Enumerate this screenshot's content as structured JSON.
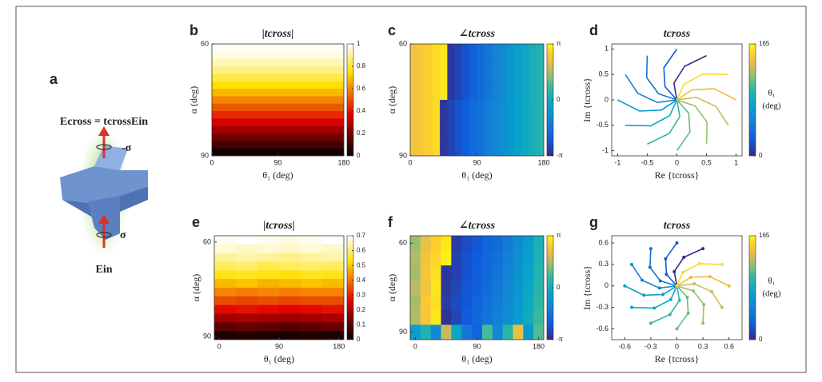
{
  "panel_a": {
    "label": "a",
    "equation": "Ecross = tcrossEin",
    "top_spin": "-σ",
    "bottom_spin": "σ",
    "input": "Ein"
  },
  "chart_data": [
    {
      "type": "heatmap",
      "panel": "b",
      "title": "|tcross|",
      "xlabel": "θ₁ (deg)",
      "ylabel": "α (deg)",
      "xlim": [
        0,
        180
      ],
      "ylim": [
        60,
        90
      ],
      "y_inverted": true,
      "xticks": [
        0,
        90,
        180
      ],
      "yticks": [
        60,
        90
      ],
      "xbins": [
        0,
        180
      ],
      "ybins": [
        60,
        62,
        64,
        66,
        68,
        70,
        72,
        74,
        76,
        78,
        80,
        82,
        84,
        86,
        88,
        90
      ],
      "z": [
        [
          0.99
        ],
        [
          0.97
        ],
        [
          0.93
        ],
        [
          0.88
        ],
        [
          0.82
        ],
        [
          0.75
        ],
        [
          0.68
        ],
        [
          0.6
        ],
        [
          0.52
        ],
        [
          0.44
        ],
        [
          0.36
        ],
        [
          0.27
        ],
        [
          0.19
        ],
        [
          0.11
        ],
        [
          0.03
        ]
      ],
      "colormap": "hot",
      "colorbar": {
        "lim": [
          0,
          1
        ],
        "ticks": [
          0,
          0.2,
          0.4,
          0.6,
          0.8,
          1
        ]
      }
    },
    {
      "type": "heatmap",
      "panel": "c",
      "title": "∠tcross",
      "xlabel": "θ₁ (deg)",
      "ylabel": "α (deg)",
      "xlim": [
        0,
        180
      ],
      "ylim": [
        60,
        90
      ],
      "y_inverted": true,
      "xticks": [
        0,
        90,
        180
      ],
      "yticks": [
        60,
        90
      ],
      "xbins": [
        0,
        10,
        20,
        30,
        40,
        50,
        60,
        70,
        80,
        90,
        100,
        110,
        120,
        130,
        140,
        150,
        160,
        170,
        180
      ],
      "ybins": [
        60,
        65,
        70,
        75,
        80,
        85,
        90
      ],
      "z": [
        [
          2.3,
          2.45,
          2.6,
          2.75,
          2.9,
          -2.9,
          -2.63,
          -2.35,
          -2.08,
          -1.8,
          -1.53,
          -1.25,
          -0.98,
          -0.7,
          -0.43,
          -0.15,
          0.13,
          0.4
        ],
        [
          2.3,
          2.45,
          2.6,
          2.75,
          2.9,
          -2.9,
          -2.63,
          -2.35,
          -2.08,
          -1.8,
          -1.53,
          -1.25,
          -0.98,
          -0.7,
          -0.43,
          -0.15,
          0.13,
          0.4
        ],
        [
          2.3,
          2.45,
          2.6,
          2.75,
          2.9,
          -2.9,
          -2.63,
          -2.35,
          -2.08,
          -1.8,
          -1.53,
          -1.25,
          -0.98,
          -0.7,
          -0.43,
          -0.15,
          0.13,
          0.4
        ],
        [
          2.3,
          2.45,
          2.6,
          2.75,
          -2.9,
          -2.65,
          -2.39,
          -2.14,
          -1.88,
          -1.63,
          -1.37,
          -1.12,
          -0.87,
          -0.61,
          -0.36,
          -0.1,
          0.15,
          0.4
        ],
        [
          2.3,
          2.45,
          2.6,
          2.75,
          -2.9,
          -2.65,
          -2.39,
          -2.14,
          -1.88,
          -1.63,
          -1.37,
          -1.12,
          -0.87,
          -0.61,
          -0.36,
          -0.1,
          0.15,
          0.4
        ],
        [
          2.3,
          2.45,
          2.6,
          2.75,
          -2.9,
          -2.65,
          -2.39,
          -2.14,
          -1.88,
          -1.63,
          -1.37,
          -1.12,
          -0.87,
          -0.61,
          -0.36,
          -0.1,
          0.15,
          0.4
        ]
      ],
      "colormap": "parula",
      "colorbar": {
        "lim": [
          -3.1416,
          3.1416
        ],
        "ticks": [
          {
            "value": -3.1416,
            "label": "-π"
          },
          0,
          {
            "value": 3.1416,
            "label": "π"
          }
        ]
      }
    },
    {
      "type": "line",
      "panel": "d",
      "title": "tcross",
      "xlabel": "Re {tcross}",
      "ylabel": "Im {tcross}",
      "xlim": [
        -1.1,
        1.1
      ],
      "ylim": [
        -1.1,
        1.1
      ],
      "xticks": [
        -1,
        -0.5,
        0,
        0.5,
        1
      ],
      "yticks": [
        -1,
        -0.5,
        0,
        0.5,
        1
      ],
      "markers": false,
      "series": [
        {
          "color": "#352a87",
          "x": [
            0,
            -0.05,
            0.13,
            0.5
          ],
          "values": [
            0,
            0.33,
            0.66,
            0.87
          ]
        },
        {
          "color": "#0f5cdd",
          "x": [
            0,
            -0.2,
            -0.22,
            0
          ],
          "values": [
            0,
            0.26,
            0.63,
            1
          ]
        },
        {
          "color": "#1272d4",
          "x": [
            0,
            -0.31,
            -0.51,
            -0.5
          ],
          "values": [
            0,
            0.12,
            0.44,
            0.87
          ]
        },
        {
          "color": "#0d87d4",
          "x": [
            0,
            -0.33,
            -0.66,
            -0.87
          ],
          "values": [
            0,
            -0.05,
            0.13,
            0.5
          ]
        },
        {
          "color": "#069acd",
          "x": [
            0,
            -0.26,
            -0.63,
            -1
          ],
          "values": [
            0,
            -0.2,
            -0.22,
            0
          ]
        },
        {
          "color": "#07a9c2",
          "x": [
            0,
            -0.12,
            -0.44,
            -0.87
          ],
          "values": [
            0,
            -0.31,
            -0.51,
            -0.5
          ]
        },
        {
          "color": "#2fb6a6",
          "x": [
            0,
            0.05,
            -0.13,
            -0.5
          ],
          "values": [
            0,
            -0.33,
            -0.66,
            -0.87
          ]
        },
        {
          "color": "#64bc8a",
          "x": [
            0,
            0.2,
            0.22,
            0
          ],
          "values": [
            0,
            -0.26,
            -0.63,
            -1
          ]
        },
        {
          "color": "#99bf6a",
          "x": [
            0,
            0.31,
            0.51,
            0.5
          ],
          "values": [
            0,
            -0.12,
            -0.44,
            -0.87
          ]
        },
        {
          "color": "#c8bc58",
          "x": [
            0,
            0.33,
            0.66,
            0.87
          ],
          "values": [
            0,
            0.05,
            -0.13,
            -0.5
          ]
        },
        {
          "color": "#f2bb3d",
          "x": [
            0,
            0.26,
            0.63,
            1
          ],
          "values": [
            0,
            0.2,
            0.22,
            0
          ]
        },
        {
          "color": "#f5d92b",
          "x": [
            0,
            0.12,
            0.44,
            0.87
          ],
          "values": [
            0,
            0.31,
            0.51,
            0.5
          ]
        }
      ],
      "colormap": "parula",
      "colorbar": {
        "label": [
          "θ₁",
          "(deg)"
        ],
        "lim": [
          0,
          165
        ],
        "ticks": [
          0,
          165
        ]
      }
    },
    {
      "type": "heatmap",
      "panel": "e",
      "title": "|tcross|",
      "xlabel": "θ₁ (deg)",
      "ylabel": "α (deg)",
      "xlim": [
        -7.5,
        187.5
      ],
      "ylim": [
        58,
        91
      ],
      "y_inverted": true,
      "xticks": [
        0,
        90,
        180
      ],
      "yticks": [
        60,
        90
      ],
      "xbins": [
        -7.5,
        25,
        57.5,
        90,
        122.5,
        155,
        187.5
      ],
      "ybins": [
        58,
        60.75,
        63.5,
        66.25,
        69,
        71.75,
        74.5,
        77.25,
        80,
        82.75,
        85.5,
        88.25,
        91
      ],
      "z": [
        [
          0.69,
          0.7,
          0.69,
          0.68,
          0.69,
          0.7
        ],
        [
          0.67,
          0.66,
          0.67,
          0.66,
          0.67,
          0.66
        ],
        [
          0.63,
          0.64,
          0.63,
          0.62,
          0.63,
          0.64
        ],
        [
          0.59,
          0.6,
          0.58,
          0.59,
          0.6,
          0.59
        ],
        [
          0.54,
          0.55,
          0.54,
          0.53,
          0.55,
          0.54
        ],
        [
          0.48,
          0.49,
          0.47,
          0.48,
          0.49,
          0.48
        ],
        [
          0.42,
          0.41,
          0.42,
          0.41,
          0.42,
          0.42
        ],
        [
          0.35,
          0.34,
          0.35,
          0.34,
          0.35,
          0.35
        ],
        [
          0.27,
          0.28,
          0.27,
          0.26,
          0.27,
          0.28
        ],
        [
          0.19,
          0.2,
          0.19,
          0.18,
          0.19,
          0.2
        ],
        [
          0.11,
          0.12,
          0.11,
          0.1,
          0.11,
          0.12
        ],
        [
          0.03,
          0.04,
          0.03,
          0.03,
          0.04,
          0.03
        ]
      ],
      "colormap": "hot",
      "colorbar": {
        "lim": [
          0,
          0.7
        ],
        "ticks": [
          0,
          0.1,
          0.2,
          0.3,
          0.4,
          0.5,
          0.6,
          0.7
        ]
      }
    },
    {
      "type": "heatmap",
      "panel": "f",
      "title": "∠tcross",
      "xlabel": "θ₁ (deg)",
      "ylabel": "α (deg)",
      "xlim": [
        -7.5,
        187.5
      ],
      "ylim": [
        57.5,
        92.5
      ],
      "y_inverted": true,
      "xticks": [
        0,
        90,
        180
      ],
      "yticks": [
        60,
        90
      ],
      "xbins": [
        -7.5,
        7.5,
        22.5,
        37.5,
        52.5,
        67.5,
        82.5,
        97.5,
        112.5,
        127.5,
        142.5,
        157.5,
        172.5,
        187.5
      ],
      "ybins": [
        57.5,
        62.5,
        67.5,
        72.5,
        77.5,
        82.5,
        87.5,
        92.5
      ],
      "z": [
        [
          1.4,
          2.2,
          2.6,
          2.9,
          -2.8,
          -2.5,
          -2.3,
          -2.0,
          -1.8,
          -1.4,
          -1.0,
          -0.5,
          0.2
        ],
        [
          1.6,
          2.3,
          2.7,
          3.0,
          -2.7,
          -2.4,
          -2.2,
          -1.9,
          -1.7,
          -1.3,
          -0.9,
          -0.4,
          0.3
        ],
        [
          1.5,
          2.4,
          2.8,
          -2.9,
          -2.7,
          -2.4,
          -2.1,
          -1.9,
          -1.6,
          -1.2,
          -0.8,
          -0.3,
          0.4
        ],
        [
          1.7,
          2.3,
          2.9,
          -2.9,
          -2.6,
          -2.3,
          -2.1,
          -1.8,
          -1.5,
          -1.1,
          -0.7,
          -0.2,
          0.5
        ],
        [
          1.5,
          2.5,
          2.8,
          -2.8,
          -2.5,
          -2.3,
          -2.0,
          -1.7,
          -1.4,
          -1.0,
          -0.6,
          -0.1,
          0.6
        ],
        [
          1.6,
          2.4,
          2.9,
          -3.0,
          -2.6,
          -2.2,
          -1.9,
          -1.6,
          -1.3,
          -0.9,
          -0.5,
          0.0,
          0.7
        ],
        [
          -0.5,
          0.3,
          -1.0,
          1.8,
          -0.2,
          -1.5,
          -2.0,
          0.8,
          -1.1,
          0.5,
          2.2,
          -0.6,
          0.9
        ]
      ],
      "colormap": "parula",
      "colorbar": {
        "lim": [
          -3.1416,
          3.1416
        ],
        "ticks": [
          {
            "value": -3.1416,
            "label": "-π"
          },
          0,
          {
            "value": 3.1416,
            "label": "π"
          }
        ]
      }
    },
    {
      "type": "line",
      "panel": "g",
      "title": "tcross",
      "xlabel": "Re {tcross}",
      "ylabel": "Im {tcross}",
      "xlim": [
        -0.75,
        0.75
      ],
      "ylim": [
        -0.75,
        0.7
      ],
      "xticks": [
        -0.6,
        -0.3,
        0,
        0.3,
        0.6
      ],
      "yticks": [
        -0.6,
        -0.3,
        0,
        0.3,
        0.6
      ],
      "markers": true,
      "series": [
        {
          "color": "#352a87",
          "x": [
            0,
            -0.03,
            0.08,
            0.3
          ],
          "values": [
            0,
            0.2,
            0.4,
            0.52
          ]
        },
        {
          "color": "#0f5cdd",
          "x": [
            0,
            -0.12,
            -0.13,
            0
          ],
          "values": [
            0,
            0.16,
            0.38,
            0.6
          ]
        },
        {
          "color": "#1272d4",
          "x": [
            0,
            -0.19,
            -0.31,
            -0.3
          ],
          "values": [
            0,
            0.07,
            0.26,
            0.52
          ]
        },
        {
          "color": "#0d87d4",
          "x": [
            0,
            -0.2,
            -0.4,
            -0.52
          ],
          "values": [
            0,
            -0.03,
            0.08,
            0.3
          ]
        },
        {
          "color": "#069acd",
          "x": [
            0,
            -0.16,
            -0.38,
            -0.6
          ],
          "values": [
            0,
            -0.12,
            -0.13,
            0
          ]
        },
        {
          "color": "#07a9c2",
          "x": [
            0,
            -0.07,
            -0.26,
            -0.52
          ],
          "values": [
            0,
            -0.19,
            -0.31,
            -0.3
          ]
        },
        {
          "color": "#2fb6a6",
          "x": [
            0,
            0.03,
            -0.08,
            -0.3
          ],
          "values": [
            0,
            -0.2,
            -0.4,
            -0.52
          ]
        },
        {
          "color": "#64bc8a",
          "x": [
            0,
            0.12,
            0.13,
            0
          ],
          "values": [
            0,
            -0.16,
            -0.38,
            -0.6
          ]
        },
        {
          "color": "#99bf6a",
          "x": [
            0,
            0.19,
            0.31,
            0.3
          ],
          "values": [
            0,
            -0.07,
            -0.26,
            -0.52
          ]
        },
        {
          "color": "#c8bc58",
          "x": [
            0,
            0.2,
            0.4,
            0.52
          ],
          "values": [
            0,
            0.03,
            -0.08,
            -0.3
          ]
        },
        {
          "color": "#f2bb3d",
          "x": [
            0,
            0.16,
            0.38,
            0.6
          ],
          "values": [
            0,
            0.12,
            0.13,
            0
          ]
        },
        {
          "color": "#f5d92b",
          "x": [
            0,
            0.07,
            0.26,
            0.52
          ],
          "values": [
            0,
            0.19,
            0.31,
            0.3
          ]
        }
      ],
      "colormap": "parula",
      "colorbar": {
        "label": [
          "θ₁",
          "(deg)"
        ],
        "lim": [
          0,
          165
        ],
        "ticks": [
          0,
          165
        ]
      }
    }
  ]
}
